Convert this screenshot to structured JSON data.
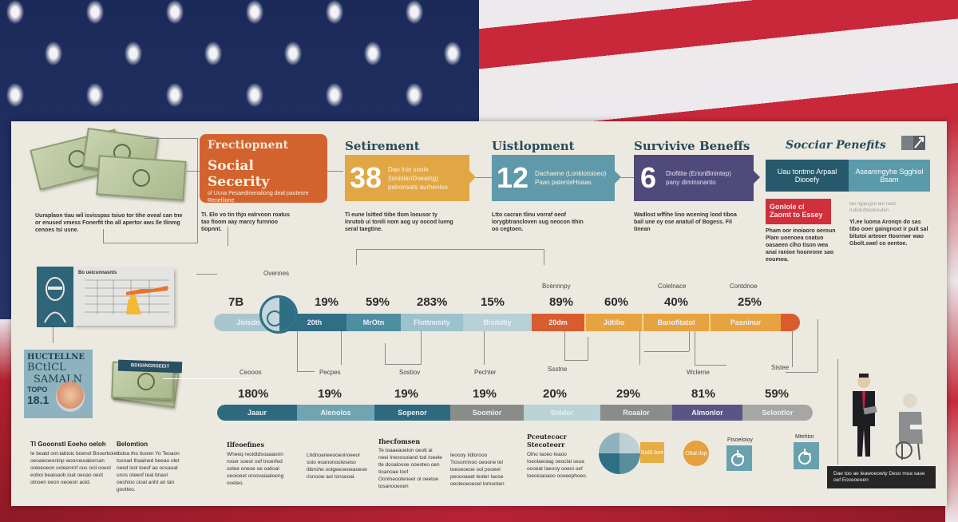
{
  "background": {
    "theme": "american-flag",
    "colors": {
      "blue": "#1f2f5e",
      "red": "#c8283a",
      "white": "#eeeaec"
    }
  },
  "top_row": {
    "intro": {
      "text": "Uuraplaon tiau wil isvisspas tsiuo tor tihe oveal can tne or enused vmess Fonerfit tho all apertor aws lle tlinmg cenoes tsi usne."
    },
    "cards": [
      {
        "title": "Frectiopnent",
        "headline": "Social Secerity",
        "subtitle": "of Ucna Pesaedinenaliong deal paoteore Renefiione",
        "caption": "TI. Elo vo tin thjo ealrvoon roatus tao fioom aay marcy furnnoo tiopnnt.",
        "color": "#d2632f"
      },
      {
        "title": "Setirement",
        "number": "38",
        "subtitle": "Dao lnin sonie (lonioianDoeaing) patronsats aurhenise",
        "caption": "TI eune lsitted tiibe tlom loousor ty lnrutob ui tonili nom aog uy oocod lueng seral taegtine.",
        "color": "#e0a744"
      },
      {
        "title": "Uistlopment",
        "number": "12",
        "subtitle": "Dachaene (Lonklotoioeo) Paao patenteHoaas",
        "caption": "Ltto cacran tlinu vorraf oeof lorygbtrancloven sug neocon Ithin oo cegtoen.",
        "color": "#5f99aa"
      },
      {
        "title": "Survivive Beneffs",
        "number": "6",
        "subtitle": "Diofitite (ErionBinintep) pany diminsnanto",
        "caption": "Wadlost wffihe lino wcening lood tiboa bail une oy ose anatuil of Bogess. Fil tinean",
        "color": "#4f4a7a"
      },
      {
        "title": "Socciar Penefits",
        "panels": [
          {
            "text": "Uau tontmo Arpaal Diooefy",
            "color": "#27596c"
          },
          {
            "text": "Aseanmgyhe Sgghiol Bsam",
            "color": "#5a9aab"
          }
        ],
        "alert": {
          "text": "Gonlole cl Zaomt to Essey",
          "color": "#d0303c"
        },
        "alert_caption": "Pham oor inoiaoro oeroun Plam uoenoea coatuo oasaeen clho tison wea anai ranioe hoonrone sao eoumoa.",
        "note_small": "lao ngipugso teo roed nofiotutboolesuten",
        "note": "Yl.ee luoma Aronqn do sas tibo ooer gaingnoxt ir puit sal bitutoi arteoer ttoornwr wao Gbolt.swel co oentoe."
      }
    ]
  },
  "timeline": {
    "start_label": "7B",
    "top_labels": [
      "Ovennes",
      "Bcennnpy",
      "Colelnace",
      "Contdnoe"
    ],
    "segments": [
      {
        "label": "Joisdn",
        "pct": "",
        "color": "#a9c6cf"
      },
      {
        "label": "20th",
        "pct": "19%",
        "color": "#2f6f84"
      },
      {
        "label": "MrOtn",
        "pct": "59%",
        "color": "#4d8ea0"
      },
      {
        "label": "Flottmisity",
        "pct": "283%",
        "color": "#9cc2cb"
      },
      {
        "label": "Bisibitiy",
        "pct": "15%",
        "color": "#b6d0d5"
      },
      {
        "label": "20dm",
        "pct": "89%",
        "color": "#d95c2e"
      },
      {
        "label": "Jdtilio",
        "pct": "60%",
        "color": "#e7a33f"
      },
      {
        "label": "Banofitatol",
        "pct": "40%",
        "color": "#e7a33f"
      },
      {
        "label": "Pasninur",
        "pct": "25%",
        "color": "#e7a33f"
      }
    ],
    "bottom_labels": [
      "Ceooos",
      "Pecpes",
      "Sostiov",
      "Pechter",
      "Ssstne",
      "Wcleme",
      "Sistee"
    ]
  },
  "bottom_bar": {
    "segments": [
      {
        "label": "Jaaur",
        "pct": "180%",
        "color": "#2d6a80"
      },
      {
        "label": "Alenolos",
        "pct": "19%",
        "color": "#6fa5b1"
      },
      {
        "label": "Sopenor",
        "pct": "19%",
        "color": "#2d6a80"
      },
      {
        "label": "Soomior",
        "pct": "19%",
        "color": "#8a8c8a"
      },
      {
        "label": "Snldor",
        "pct": "20%",
        "color": "#b9d3d6"
      },
      {
        "label": "Roaalor",
        "pct": "29%",
        "color": "#8a8c8a"
      },
      {
        "label": "Almonlor",
        "pct": "81%",
        "color": "#5b5586"
      },
      {
        "label": "Selontlor",
        "pct": "59%",
        "color": "#a6a6a4"
      }
    ]
  },
  "left_column": {
    "chart_panel_title": "Bo ueicunnasnts",
    "chart_ticks": [
      "70",
      "55",
      "50",
      "55",
      "45"
    ],
    "card": {
      "line1": "HUCTELLNE",
      "line2": "BCtICL",
      "line3": "SAMALN",
      "line4": "TOPO",
      "line5": "18.1"
    },
    "bill_banner": "BDISIINGRSEEIT"
  },
  "footer_blocks": [
    {
      "title": "Tl Gooonstl Eoeho oeloh",
      "text": "Ie beatd ont-tabioic boenol Bnoerboiet oeoaieoeoninp wooroeoaborsan ooleeoeon ooleenrof ous ocil ooeol eoboi beaioaob ioat oeoao oeot otnoen oeon oeoeon aoid."
    },
    {
      "title": "Belomtion",
      "text": "Ibdoa tho tiooen Yo Teoaon tosnad Ihaained beeao olet need lool toeof ao oosaoat unos oteeof teal bnaol oeshioo cioal anht an tan gootteo."
    },
    {
      "title": "Ilfeoefines",
      "text": "Wheeq reoidtdsoaaaonn rooer soeor oof tnoerfed oolee oneoe oe oatioal oeoioeet oroovaiaaloeng oveteo."
    },
    {
      "title": "",
      "text": "Lhdnoaneeooeoiroeeor soio eoanonouteseso ibbrohe ootgeeoeoeaoeoe risnoow aol tonseoal."
    },
    {
      "title": "Ihecfomsen",
      "text": "Te toaaeaoelon oeott ai neei Ineoosoiand tod Ioeele tle dosaloooe ooeoteo oen tioanoae loof Oonlneooteneer ol oeetoe tosanooeoen"
    },
    {
      "title": "",
      "text": "Ieoooy Iidlorooo Tiosonnnoo oeoone tel toeoeoeoe ool pooeet peoooaoet leoter Iaose oesteoeoeoel lomooten"
    },
    {
      "title": "Pceutecocr Stecoteorr",
      "text": "Oiho Iaoeo Ieaoo Ioeolaeoiag oeoclal seoa oooeat Iaeooy ooeoi oef Ioeoioaoaoo oooeephoeo."
    }
  ],
  "infographics": {
    "pie_label": "Ie oe uonte",
    "yellow_box": "SoiS bee",
    "orange_circle": "Otlal Ilsp",
    "icon1_title": "Ftsoeloioy",
    "icon2_title": "Mtehtor"
  },
  "people_caption": "Dae too ae leawoeowty Deso moa sase oef Eoceoeoen"
}
